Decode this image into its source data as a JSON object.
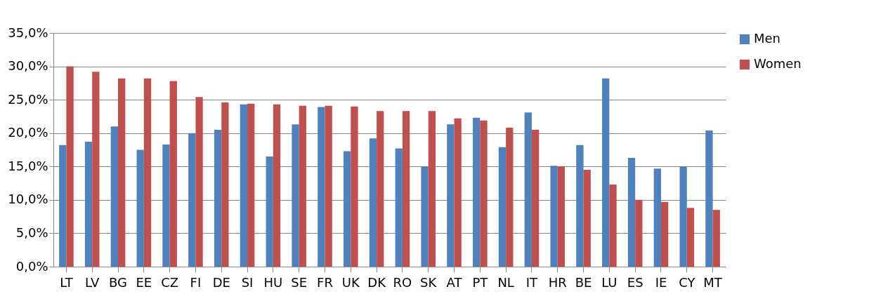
{
  "chart_data": {
    "type": "bar",
    "categories": [
      "LT",
      "LV",
      "BG",
      "EE",
      "CZ",
      "FI",
      "DE",
      "SI",
      "HU",
      "SE",
      "FR",
      "UK",
      "DK",
      "RO",
      "SK",
      "AT",
      "PT",
      "NL",
      "IT",
      "HR",
      "BE",
      "LU",
      "ES",
      "IE",
      "CY",
      "MT"
    ],
    "series": [
      {
        "name": "Men",
        "color": "#4f81bd",
        "values": [
          18.2,
          18.7,
          21.0,
          17.5,
          18.3,
          20.0,
          20.5,
          24.3,
          16.5,
          21.3,
          23.9,
          17.3,
          19.2,
          17.7,
          15.0,
          21.3,
          22.3,
          17.9,
          23.1,
          15.1,
          18.2,
          28.2,
          16.3,
          14.7,
          15.0,
          20.4
        ]
      },
      {
        "name": "Women",
        "color": "#c0504d",
        "values": [
          30.0,
          29.2,
          28.2,
          28.2,
          27.8,
          25.4,
          24.6,
          24.4,
          24.3,
          24.1,
          24.1,
          24.0,
          23.3,
          23.3,
          23.3,
          22.2,
          21.9,
          20.8,
          20.5,
          15.0,
          14.5,
          12.3,
          10.0,
          9.7,
          8.8,
          8.5
        ]
      }
    ],
    "ylim": [
      0,
      35
    ],
    "yticks": [
      {
        "value": 0,
        "label": "0,0%"
      },
      {
        "value": 5,
        "label": "5,0%"
      },
      {
        "value": 10,
        "label": "10,0%"
      },
      {
        "value": 15,
        "label": "15,0%"
      },
      {
        "value": 20,
        "label": "20,0%"
      },
      {
        "value": 25,
        "label": "25,0%"
      },
      {
        "value": 30,
        "label": "30,0%"
      },
      {
        "value": 35,
        "label": "35,0%"
      }
    ],
    "grid": "y",
    "legend": "right"
  }
}
